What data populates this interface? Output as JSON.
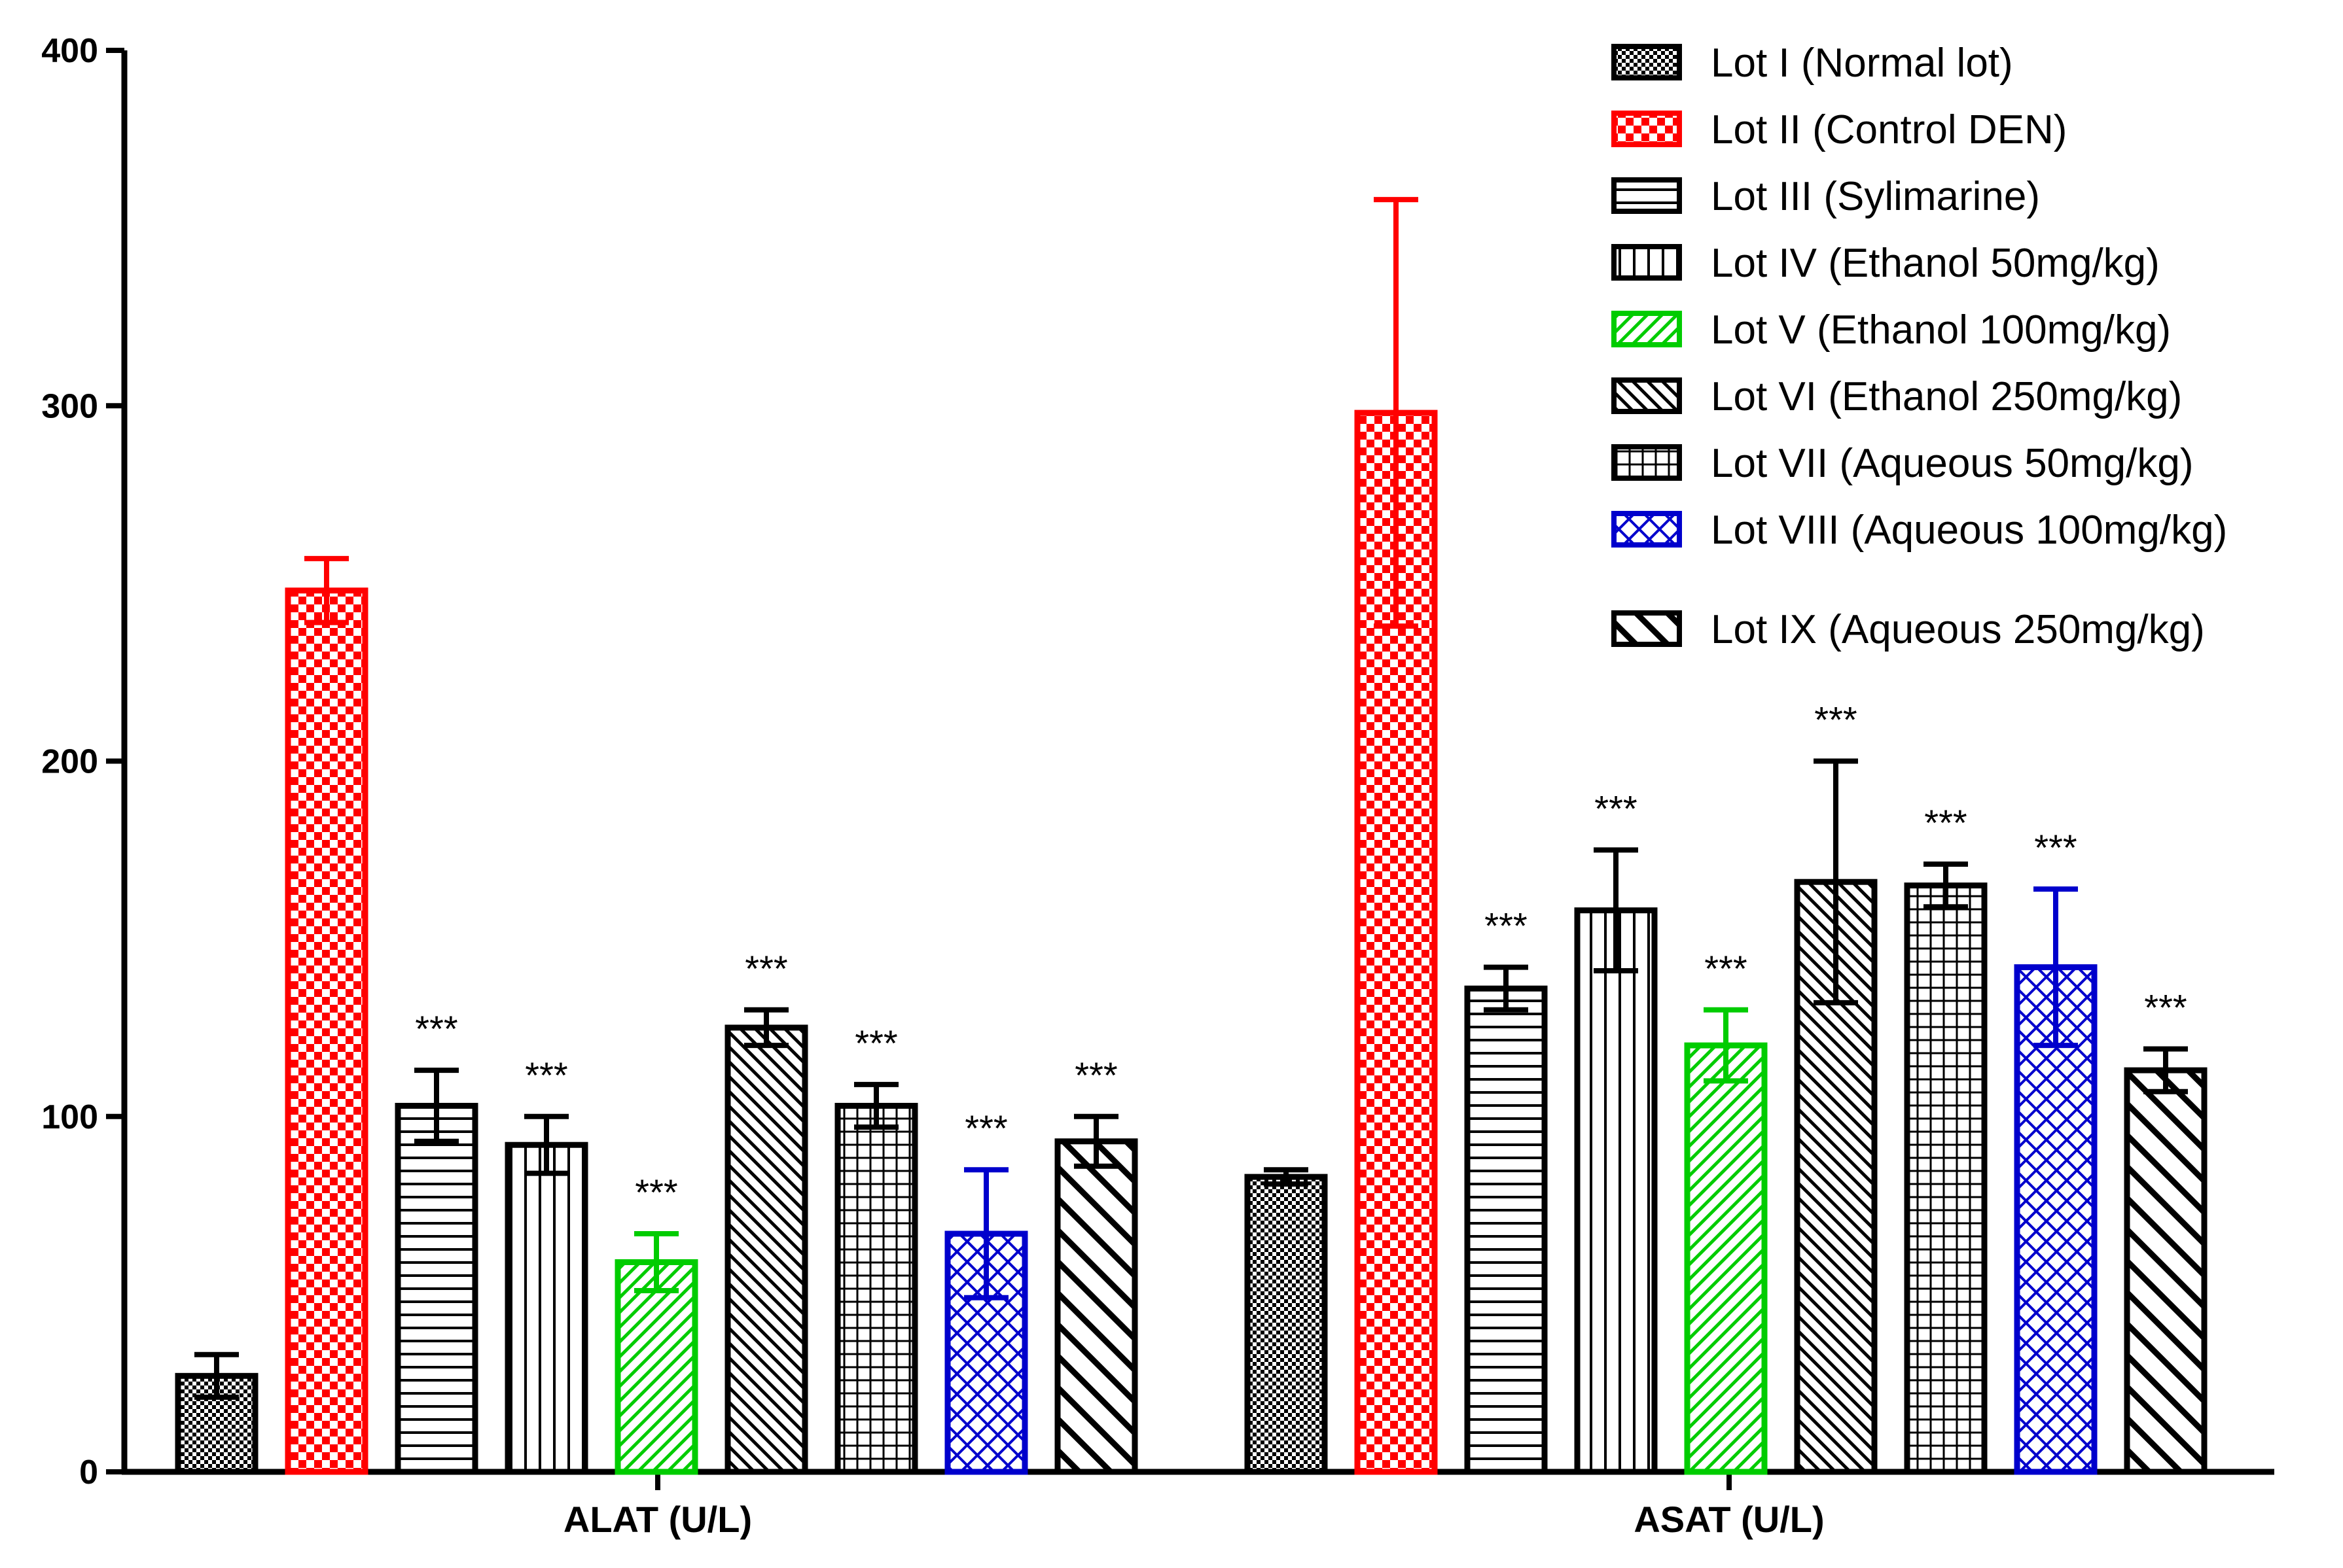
{
  "chart_data": {
    "type": "bar",
    "categories": [
      "ALAT (U/L)",
      "ASAT (U/L)"
    ],
    "ylim": [
      0,
      400
    ],
    "yticks": [
      0,
      100,
      200,
      300,
      400
    ],
    "grid": false,
    "legend_position": "top-right",
    "series": [
      {
        "name": "Lot I (Normal lot)",
        "values": [
          27,
          83
        ],
        "errors": [
          6,
          2
        ],
        "significance": [
          "",
          ""
        ],
        "color": "#000000",
        "pattern": "checker-fine"
      },
      {
        "name": "Lot II (Control DEN)",
        "values": [
          248,
          298
        ],
        "errors": [
          9,
          60
        ],
        "significance": [
          "",
          ""
        ],
        "color": "#ff0000",
        "pattern": "checker"
      },
      {
        "name": "Lot III (Sylimarine)",
        "values": [
          103,
          136
        ],
        "errors": [
          10,
          6
        ],
        "significance": [
          "***",
          "***"
        ],
        "color": "#000000",
        "pattern": "horizontal"
      },
      {
        "name": "Lot IV (Ethanol 50mg/kg)",
        "values": [
          92,
          158
        ],
        "errors": [
          8,
          17
        ],
        "significance": [
          "***",
          "***"
        ],
        "color": "#000000",
        "pattern": "vertical"
      },
      {
        "name": "Lot V (Ethanol 100mg/kg)",
        "values": [
          59,
          120
        ],
        "errors": [
          8,
          10
        ],
        "significance": [
          "***",
          "***"
        ],
        "color": "#00cc00",
        "pattern": "diag-up"
      },
      {
        "name": "Lot VI (Ethanol 250mg/kg)",
        "values": [
          125,
          166
        ],
        "errors": [
          5,
          34
        ],
        "significance": [
          "***",
          "***"
        ],
        "color": "#000000",
        "pattern": "diag-down"
      },
      {
        "name": "Lot VII (Aqueous 50mg/kg)",
        "values": [
          103,
          165
        ],
        "errors": [
          6,
          6
        ],
        "significance": [
          "***",
          "***"
        ],
        "color": "#000000",
        "pattern": "grid"
      },
      {
        "name": "Lot VIII (Aqueous 100mg/kg)",
        "values": [
          67,
          142
        ],
        "errors": [
          18,
          22
        ],
        "significance": [
          "***",
          "***"
        ],
        "color": "#0000cc",
        "pattern": "crosshatch"
      },
      {
        "name": "Lot IX (Aqueous 250mg/kg)",
        "values": [
          93,
          113
        ],
        "errors": [
          7,
          6
        ],
        "significance": [
          "***",
          "***"
        ],
        "color": "#000000",
        "pattern": "diag-down-wide"
      }
    ]
  }
}
